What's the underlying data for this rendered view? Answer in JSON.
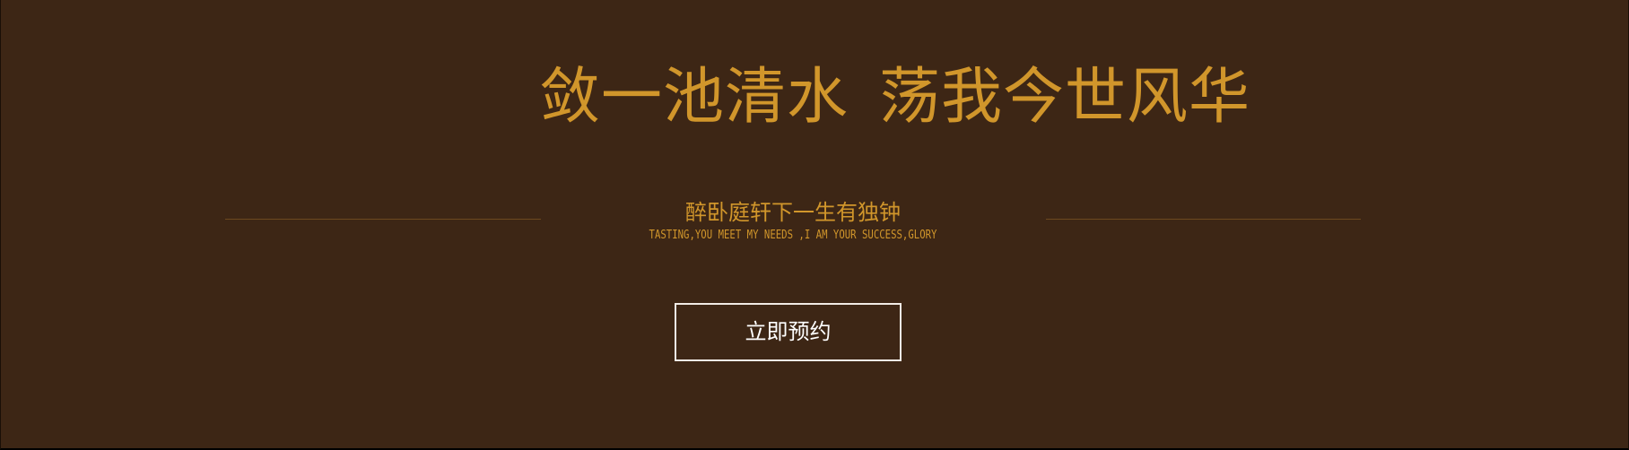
{
  "hero": {
    "headline_part1": "敛一池清水",
    "headline_part2": "荡我今世风华",
    "subtitle": "醉卧庭轩下一生有独钟",
    "tagline": "TASTING,YOU MEET MY NEEDS ,I AM YOUR SUCCESS,GLORY",
    "cta_label": "立即预约"
  },
  "colors": {
    "background": "#3d2615",
    "accent_gold": "#d1962b",
    "divider": "#6e4a1f",
    "button_border": "#f2ece6"
  }
}
